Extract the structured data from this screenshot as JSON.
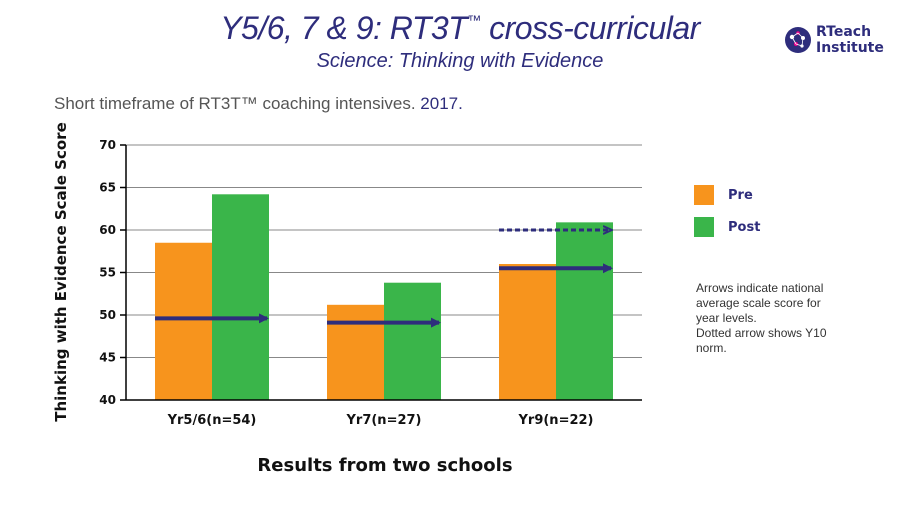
{
  "header": {
    "title_main": "Y5/6, 7 & 9: RT3T",
    "title_tm": "™",
    "title_tail": " cross-curricular",
    "subtitle": "Science: Thinking with Evidence",
    "context_text": "Short timeframe of RT3T™ coaching intensives. ",
    "context_year": "2017."
  },
  "logo": {
    "line1": "RTeach",
    "line2": "Institute",
    "icon": "globe-network-icon"
  },
  "legend": {
    "items": [
      {
        "label": "Pre",
        "color": "#f7941d"
      },
      {
        "label": "Post",
        "color": "#3ab54a"
      }
    ]
  },
  "note": {
    "lines": [
      "Arrows indicate national",
      "average scale score for",
      "year levels.",
      "Dotted arrow shows Y10",
      "norm."
    ]
  },
  "chart_data": {
    "type": "bar",
    "categories": [
      "Yr5/6(n=54)",
      "Yr7(n=27)",
      "Yr9(n=22)"
    ],
    "series": [
      {
        "name": "Pre",
        "values": [
          58.5,
          51.2,
          56.0
        ],
        "color": "#f7941d"
      },
      {
        "name": "Post",
        "values": [
          64.2,
          53.8,
          60.9
        ],
        "color": "#3ab54a"
      }
    ],
    "national_average": [
      49.6,
      49.1,
      55.5
    ],
    "y10_norm": {
      "category": "Yr9(n=22)",
      "value": 60.0
    },
    "arrow_color": "#2e2d7c",
    "ylabel": "Thinking with Evidence Scale Score",
    "xlabel": "Results from two schools",
    "ylim": [
      40,
      70
    ],
    "yticks": [
      40,
      45,
      50,
      55,
      60,
      65,
      70
    ],
    "grid": true
  }
}
